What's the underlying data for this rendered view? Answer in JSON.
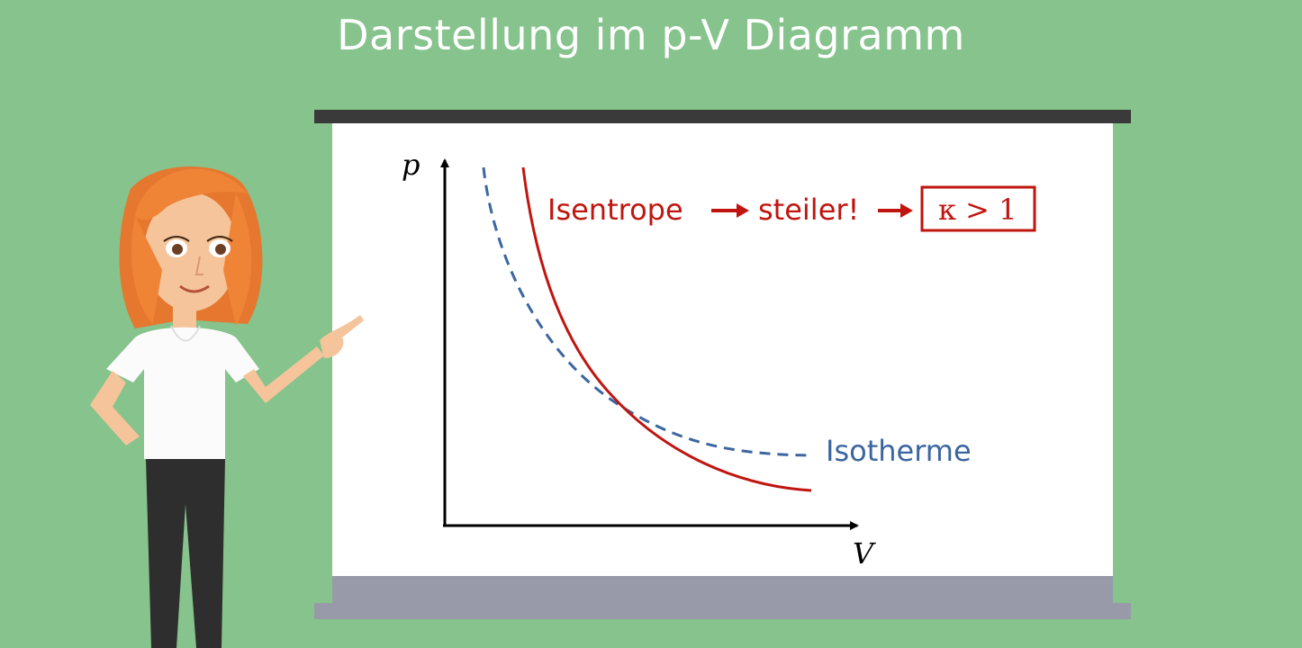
{
  "title": "Darstellung im p-V Diagramm",
  "diagram": {
    "y_axis_label": "p",
    "x_axis_label": "V",
    "isentrope_label": "Isentrope",
    "steeper_label": "steiler!",
    "kappa_label": "κ > 1",
    "isotherme_label": "Isotherme"
  },
  "colors": {
    "background": "#86c38d",
    "isentrope": "#c0150f",
    "isotherme": "#3b66a0",
    "axis": "#000000"
  },
  "icons": [
    "presenter-character",
    "arrow-right-icon"
  ]
}
